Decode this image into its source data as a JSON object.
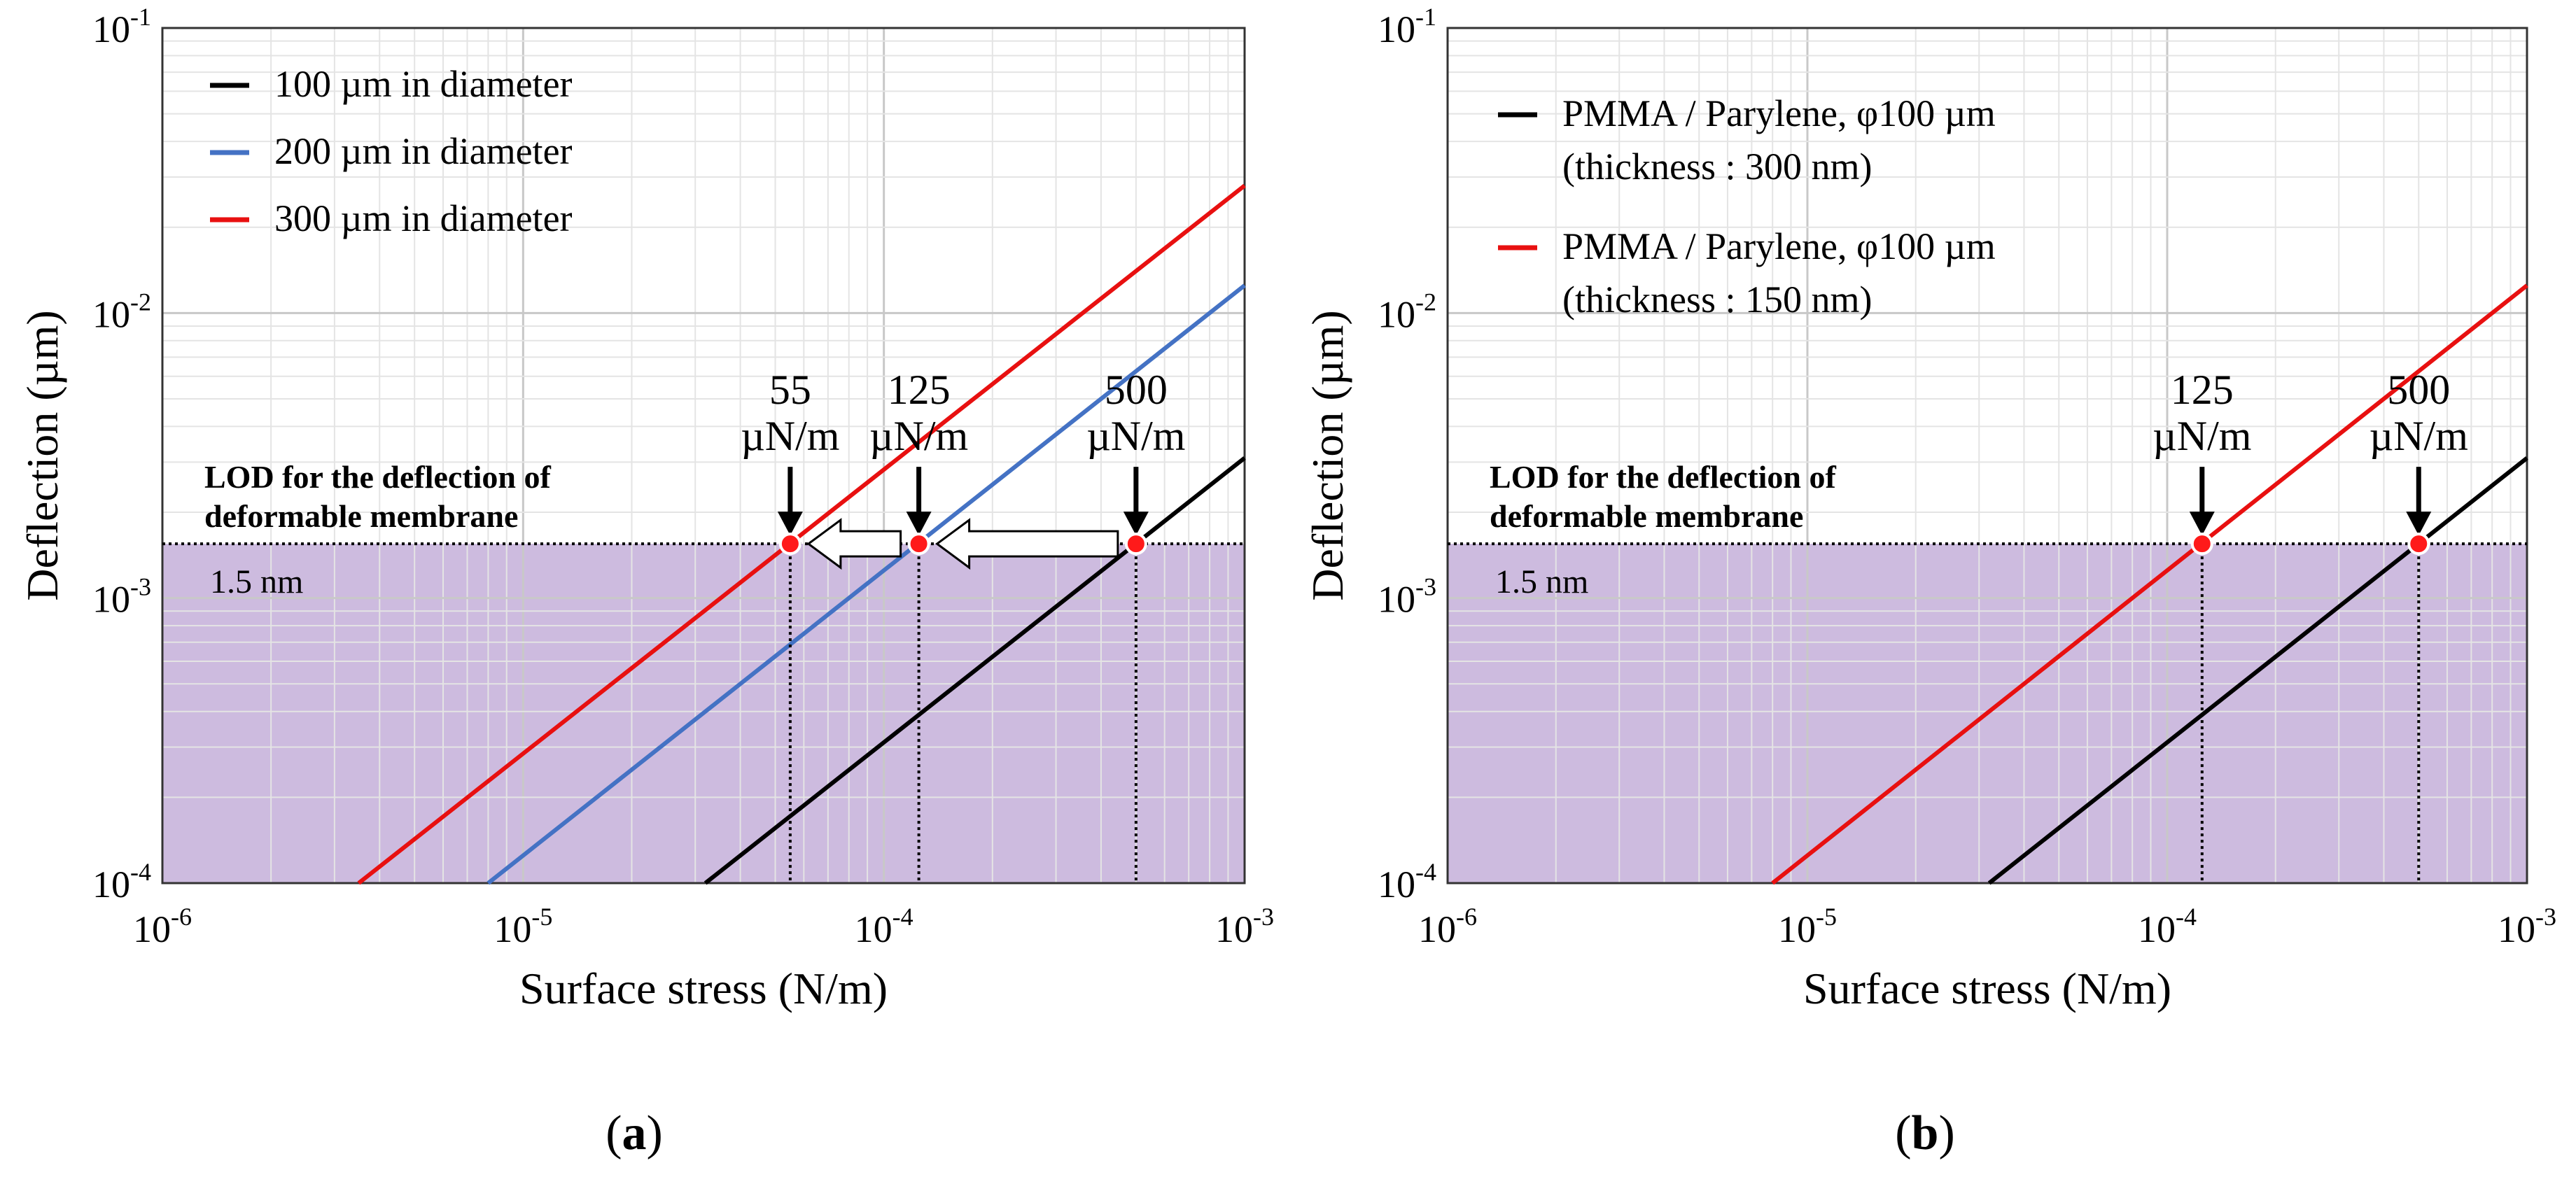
{
  "chart_data": [
    {
      "type": "line",
      "panel": "a",
      "caption_open": "(",
      "caption_letter": "a",
      "caption_close": ")",
      "xlabel": "Surface stress (N/m)",
      "ylabel": "Deflection (µm)",
      "x_scale": "log",
      "y_scale": "log",
      "xlim": [
        1e-06,
        0.001
      ],
      "ylim": [
        0.0001,
        0.1
      ],
      "x_ticks": [
        {
          "base": "10",
          "exp": "-6",
          "value": 1e-06
        },
        {
          "base": "10",
          "exp": "-5",
          "value": 1e-05
        },
        {
          "base": "10",
          "exp": "-4",
          "value": 0.0001
        },
        {
          "base": "10",
          "exp": "-3",
          "value": 0.001
        }
      ],
      "y_ticks": [
        {
          "base": "10",
          "exp": "-4",
          "value": 0.0001
        },
        {
          "base": "10",
          "exp": "-3",
          "value": 0.001
        },
        {
          "base": "10",
          "exp": "-2",
          "value": 0.01
        },
        {
          "base": "10",
          "exp": "-1",
          "value": 0.1
        }
      ],
      "grid": true,
      "legend_position": "top-left",
      "series": [
        {
          "name": "100 µm in diameter",
          "color": "#000000",
          "x": [
            3.2e-05,
            0.001
          ],
          "y": [
            0.0001,
            0.0031
          ]
        },
        {
          "name": "200 µm in diameter",
          "color": "#4472C4",
          "x": [
            8e-06,
            0.001
          ],
          "y": [
            0.0001,
            0.0125
          ]
        },
        {
          "name": "300 µm in diameter",
          "color": "#E81010",
          "x": [
            3.5e-06,
            0.001
          ],
          "y": [
            0.0001,
            0.028
          ]
        }
      ],
      "lod": {
        "value": 0.00155,
        "label_line1": "LOD for the deflection of",
        "label_line2": "deformable membrane",
        "value_label": "1.5 nm",
        "fill": "#CDBBDF"
      },
      "markers": [
        {
          "x": 5.5e-05,
          "line1": "55",
          "line2": "µN/m"
        },
        {
          "x": 0.000125,
          "line1": "125",
          "line2": "µN/m"
        },
        {
          "x": 0.0005,
          "line1": "500",
          "line2": "µN/m"
        }
      ],
      "shift_arrows": [
        {
          "from": 0.000125,
          "to": 5.5e-05
        },
        {
          "from": 0.0005,
          "to": 0.000125
        }
      ]
    },
    {
      "type": "line",
      "panel": "b",
      "caption_open": "(",
      "caption_letter": "b",
      "caption_close": ")",
      "xlabel": "Surface stress (N/m)",
      "ylabel": "Deflection (µm)",
      "x_scale": "log",
      "y_scale": "log",
      "xlim": [
        1e-06,
        0.001
      ],
      "ylim": [
        0.0001,
        0.1
      ],
      "x_ticks": [
        {
          "base": "10",
          "exp": "-6",
          "value": 1e-06
        },
        {
          "base": "10",
          "exp": "-5",
          "value": 1e-05
        },
        {
          "base": "10",
          "exp": "-4",
          "value": 0.0001
        },
        {
          "base": "10",
          "exp": "-3",
          "value": 0.001
        }
      ],
      "y_ticks": [
        {
          "base": "10",
          "exp": "-4",
          "value": 0.0001
        },
        {
          "base": "10",
          "exp": "-3",
          "value": 0.001
        },
        {
          "base": "10",
          "exp": "-2",
          "value": 0.01
        },
        {
          "base": "10",
          "exp": "-1",
          "value": 0.1
        }
      ],
      "grid": true,
      "legend_position": "top-left",
      "series": [
        {
          "name": "PMMA / Parylene, φ100 µm",
          "name2": "(thickness : 300 nm)",
          "color": "#000000",
          "x": [
            3.2e-05,
            0.001
          ],
          "y": [
            0.0001,
            0.0031
          ]
        },
        {
          "name": "PMMA / Parylene, φ100 µm",
          "name2": "(thickness : 150 nm)",
          "color": "#E81010",
          "x": [
            8e-06,
            0.001
          ],
          "y": [
            0.0001,
            0.0125
          ]
        }
      ],
      "lod": {
        "value": 0.00155,
        "label_line1": "LOD for the deflection of",
        "label_line2": "deformable membrane",
        "value_label": "1.5 nm",
        "fill": "#CDBBDF"
      },
      "markers": [
        {
          "x": 0.000125,
          "line1": "125",
          "line2": "µN/m"
        },
        {
          "x": 0.0005,
          "line1": "500",
          "line2": "µN/m"
        }
      ],
      "shift_arrows": []
    }
  ]
}
